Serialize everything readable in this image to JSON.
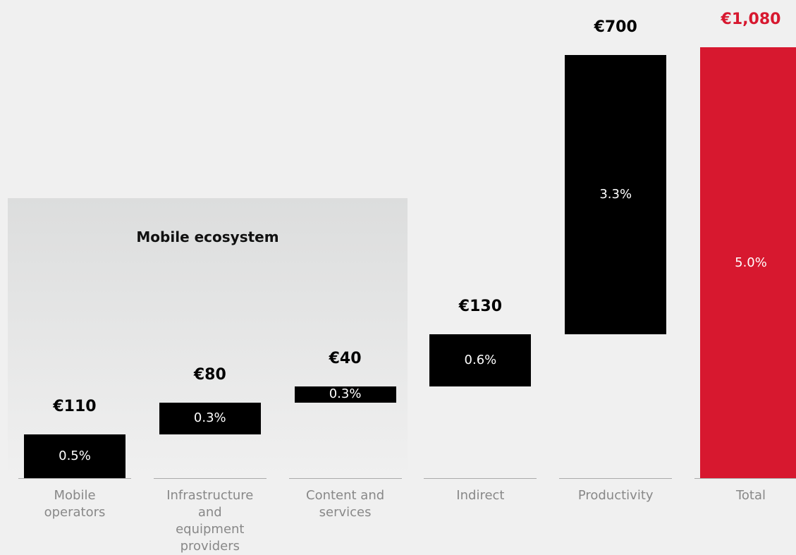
{
  "chart_data": {
    "type": "waterfall",
    "annotation": "Mobile ecosystem",
    "categories": [
      "Mobile operators",
      "Infrastructure and equipment providers",
      "Content and services",
      "Indirect",
      "Productivity",
      "Total"
    ],
    "values": [
      110,
      80,
      40,
      130,
      700,
      1080
    ],
    "value_labels": [
      "€110",
      "€80",
      "€40",
      "€130",
      "€700",
      "€1,080"
    ],
    "percent_labels": [
      "0.5%",
      "0.3%",
      "0.3%",
      "0.6%",
      "3.3%",
      "5.0%"
    ],
    "color": "#000000",
    "total_color": "#d7182f"
  }
}
